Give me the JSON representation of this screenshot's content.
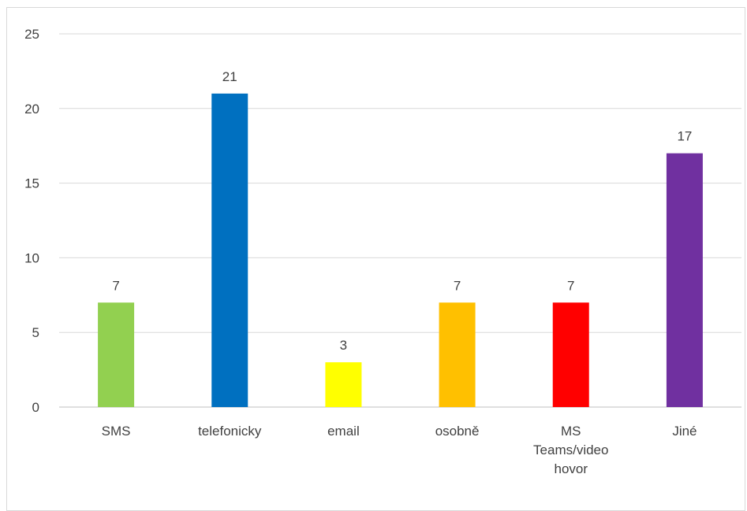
{
  "chart_data": {
    "type": "bar",
    "categories": [
      [
        "SMS"
      ],
      [
        "telefonicky"
      ],
      [
        "email"
      ],
      [
        "osobně"
      ],
      [
        "MS",
        "Teams/video",
        "hovor"
      ],
      [
        "Jiné"
      ]
    ],
    "values": [
      7,
      21,
      3,
      7,
      7,
      17
    ],
    "bar_colors": [
      "#92d050",
      "#0070c0",
      "#ffff00",
      "#ffc000",
      "#ff0000",
      "#7030a0"
    ],
    "ylim": [
      0,
      25
    ],
    "yticks": [
      "0",
      "5",
      "10",
      "15",
      "20",
      "25"
    ],
    "grid": true,
    "legend": "none",
    "data_labels": true
  }
}
